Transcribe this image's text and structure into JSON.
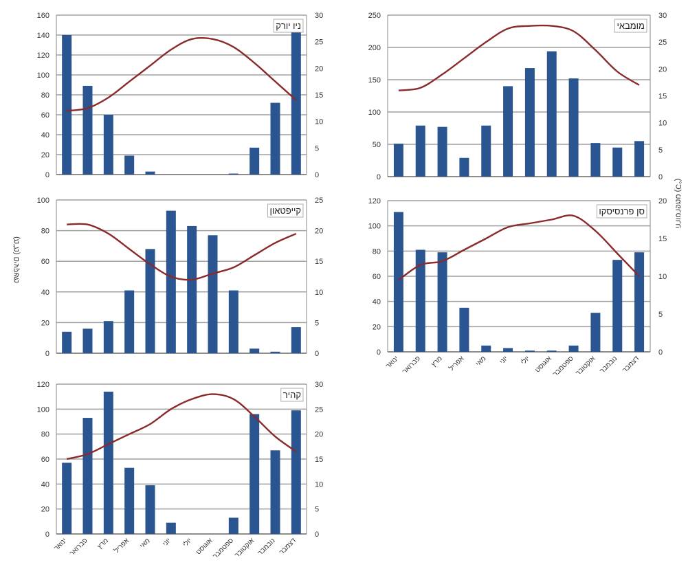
{
  "months": [
    "ינואר",
    "פברואר",
    "מרץ",
    "אפריל",
    "מאי",
    "יוני",
    "יולי",
    "אוגוסט",
    "ספטמבר",
    "אוקטובר",
    "נובמבר",
    "דצמבר"
  ],
  "axis_titles": {
    "left": "משקעים (מ\"מ)",
    "right": "טמפרטורה (C°)"
  },
  "colors": {
    "bar": "#2a5591",
    "line": "#8b2a2a",
    "grid": "#a0a0a0"
  },
  "chart_data": [
    {
      "type": "bar",
      "title": "ניו יורק",
      "categories": [
        "ינואר",
        "פברואר",
        "מרץ",
        "אפריל",
        "מאי",
        "יוני",
        "יולי",
        "אוגוסט",
        "ספטמבר",
        "אוקטובר",
        "נובמבר",
        "דצמבר"
      ],
      "ylim": [
        0,
        160
      ],
      "yticks": [
        0,
        20,
        40,
        60,
        80,
        100,
        120,
        140,
        160
      ],
      "y2lim": [
        0,
        30
      ],
      "y2ticks": [
        0,
        5,
        10,
        15,
        20,
        25,
        30
      ],
      "show_x_labels": false,
      "series": [
        {
          "type": "bar",
          "axis": "left",
          "values": [
            140,
            89,
            60,
            19,
            3,
            0,
            0,
            0,
            1,
            27,
            72,
            144
          ]
        },
        {
          "type": "line",
          "axis": "right",
          "values": [
            12,
            12.5,
            14.5,
            17.5,
            20.5,
            23.5,
            25.5,
            25.5,
            24,
            21,
            17.5,
            14
          ]
        }
      ]
    },
    {
      "type": "bar",
      "title": "מומבאי",
      "categories": [
        "ינואר",
        "פברואר",
        "מרץ",
        "אפריל",
        "מאי",
        "יוני",
        "יולי",
        "אוגוסט",
        "ספטמבר",
        "אוקטובר",
        "נובמבר",
        "דצמבר"
      ],
      "ylim": [
        0,
        250
      ],
      "yticks": [
        0,
        50,
        100,
        150,
        200,
        250
      ],
      "y2lim": [
        0,
        30
      ],
      "y2ticks": [
        0,
        5,
        10,
        15,
        20,
        25,
        30
      ],
      "show_x_labels": false,
      "series": [
        {
          "type": "bar",
          "axis": "left",
          "values": [
            51,
            79,
            77,
            29,
            79,
            140,
            168,
            194,
            152,
            52,
            45,
            55
          ]
        },
        {
          "type": "line",
          "axis": "right",
          "values": [
            16,
            16.5,
            19,
            22,
            25,
            27.5,
            28,
            28,
            27,
            23.5,
            19.5,
            17
          ]
        }
      ]
    },
    {
      "type": "bar",
      "title": "קייפטאון",
      "categories": [
        "ינואר",
        "פברואר",
        "מרץ",
        "אפריל",
        "מאי",
        "יוני",
        "יולי",
        "אוגוסט",
        "ספטמבר",
        "אוקטובר",
        "נובמבר",
        "דצמבר"
      ],
      "ylim": [
        0,
        100
      ],
      "yticks": [
        0,
        20,
        40,
        60,
        80,
        100
      ],
      "y2lim": [
        0,
        25
      ],
      "y2ticks": [
        0,
        5,
        10,
        15,
        20,
        25
      ],
      "show_x_labels": false,
      "series": [
        {
          "type": "bar",
          "axis": "left",
          "values": [
            14,
            16,
            21,
            41,
            68,
            93,
            83,
            77,
            41,
            3,
            1,
            17
          ]
        },
        {
          "type": "line",
          "axis": "right",
          "values": [
            21,
            21,
            19.5,
            17,
            14.5,
            12.5,
            12,
            13,
            14,
            16,
            18,
            19.5
          ]
        }
      ]
    },
    {
      "type": "bar",
      "title": "סן פרנסיסקו",
      "categories": [
        "ינואר",
        "פברואר",
        "מרץ",
        "אפריל",
        "מאי",
        "יוני",
        "יולי",
        "אוגוסט",
        "ספטמבר",
        "אוקטובר",
        "נובמבר",
        "דצמבר"
      ],
      "ylim": [
        0,
        120
      ],
      "yticks": [
        0,
        20,
        40,
        60,
        80,
        100,
        120
      ],
      "y2lim": [
        0,
        20
      ],
      "y2ticks": [
        0,
        5,
        10,
        15,
        20
      ],
      "show_x_labels": true,
      "series": [
        {
          "type": "bar",
          "axis": "left",
          "values": [
            111,
            81,
            79,
            35,
            5,
            3,
            1,
            1,
            5,
            31,
            73,
            79
          ]
        },
        {
          "type": "line",
          "axis": "right",
          "values": [
            9.5,
            11.5,
            12,
            13.5,
            15,
            16.5,
            17,
            17.5,
            18,
            16,
            13,
            10
          ]
        }
      ]
    },
    {
      "type": "bar",
      "title": "קהיר",
      "categories": [
        "ינואר",
        "פברואר",
        "מרץ",
        "אפריל",
        "מאי",
        "יוני",
        "יולי",
        "אוגוסט",
        "ספטמבר",
        "אוקטובר",
        "נובמבר",
        "דצמבר"
      ],
      "ylim": [
        0,
        120
      ],
      "yticks": [
        0,
        20,
        40,
        60,
        80,
        100,
        120
      ],
      "y2lim": [
        0,
        30
      ],
      "y2ticks": [
        0,
        5,
        10,
        15,
        20,
        25,
        30
      ],
      "show_x_labels": true,
      "series": [
        {
          "type": "bar",
          "axis": "left",
          "values": [
            57,
            93,
            114,
            53,
            39,
            9,
            0,
            0,
            13,
            96,
            67,
            99
          ]
        },
        {
          "type": "line",
          "axis": "right",
          "values": [
            15,
            16,
            18,
            20,
            22,
            25,
            27,
            28,
            27,
            23.5,
            19.5,
            16.5
          ]
        }
      ]
    }
  ]
}
